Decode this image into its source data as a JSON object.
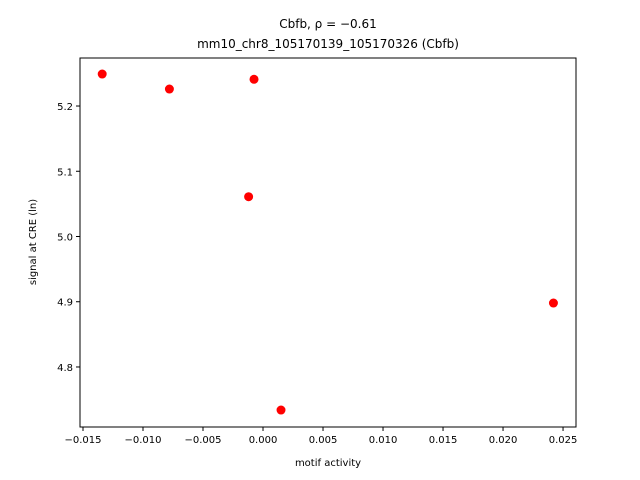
{
  "chart_data": {
    "type": "scatter",
    "title": "Cbfb, ρ = −0.61",
    "subtitle": "mm10_chr8_105170139_105170326 (Cbfb)",
    "x_label": "motif activity",
    "y_label": "signal at CRE (ln)",
    "color": "#ff0000",
    "x": [
      -0.0134,
      -0.0078,
      -0.00075,
      -0.0012,
      0.0015,
      0.0242
    ],
    "values": [
      5.249,
      5.226,
      5.241,
      5.061,
      4.734,
      4.898
    ],
    "xlim": [
      -0.01525,
      0.02608
    ],
    "ylim": [
      4.708,
      5.2736
    ],
    "xticks": [
      {
        "value": -0.015,
        "label": "−0.015"
      },
      {
        "value": -0.01,
        "label": "−0.010"
      },
      {
        "value": -0.005,
        "label": "−0.005"
      },
      {
        "value": 0,
        "label": "0.000"
      },
      {
        "value": 0.005,
        "label": "0.005"
      },
      {
        "value": 0.01,
        "label": "0.010"
      },
      {
        "value": 0.015,
        "label": "0.015"
      },
      {
        "value": 0.02,
        "label": "0.020"
      },
      {
        "value": 0.025,
        "label": "0.025"
      }
    ],
    "yticks": [
      4.8,
      4.9,
      {
        "value": 5.0,
        "label": "5.0"
      },
      5.1,
      5.2
    ]
  }
}
